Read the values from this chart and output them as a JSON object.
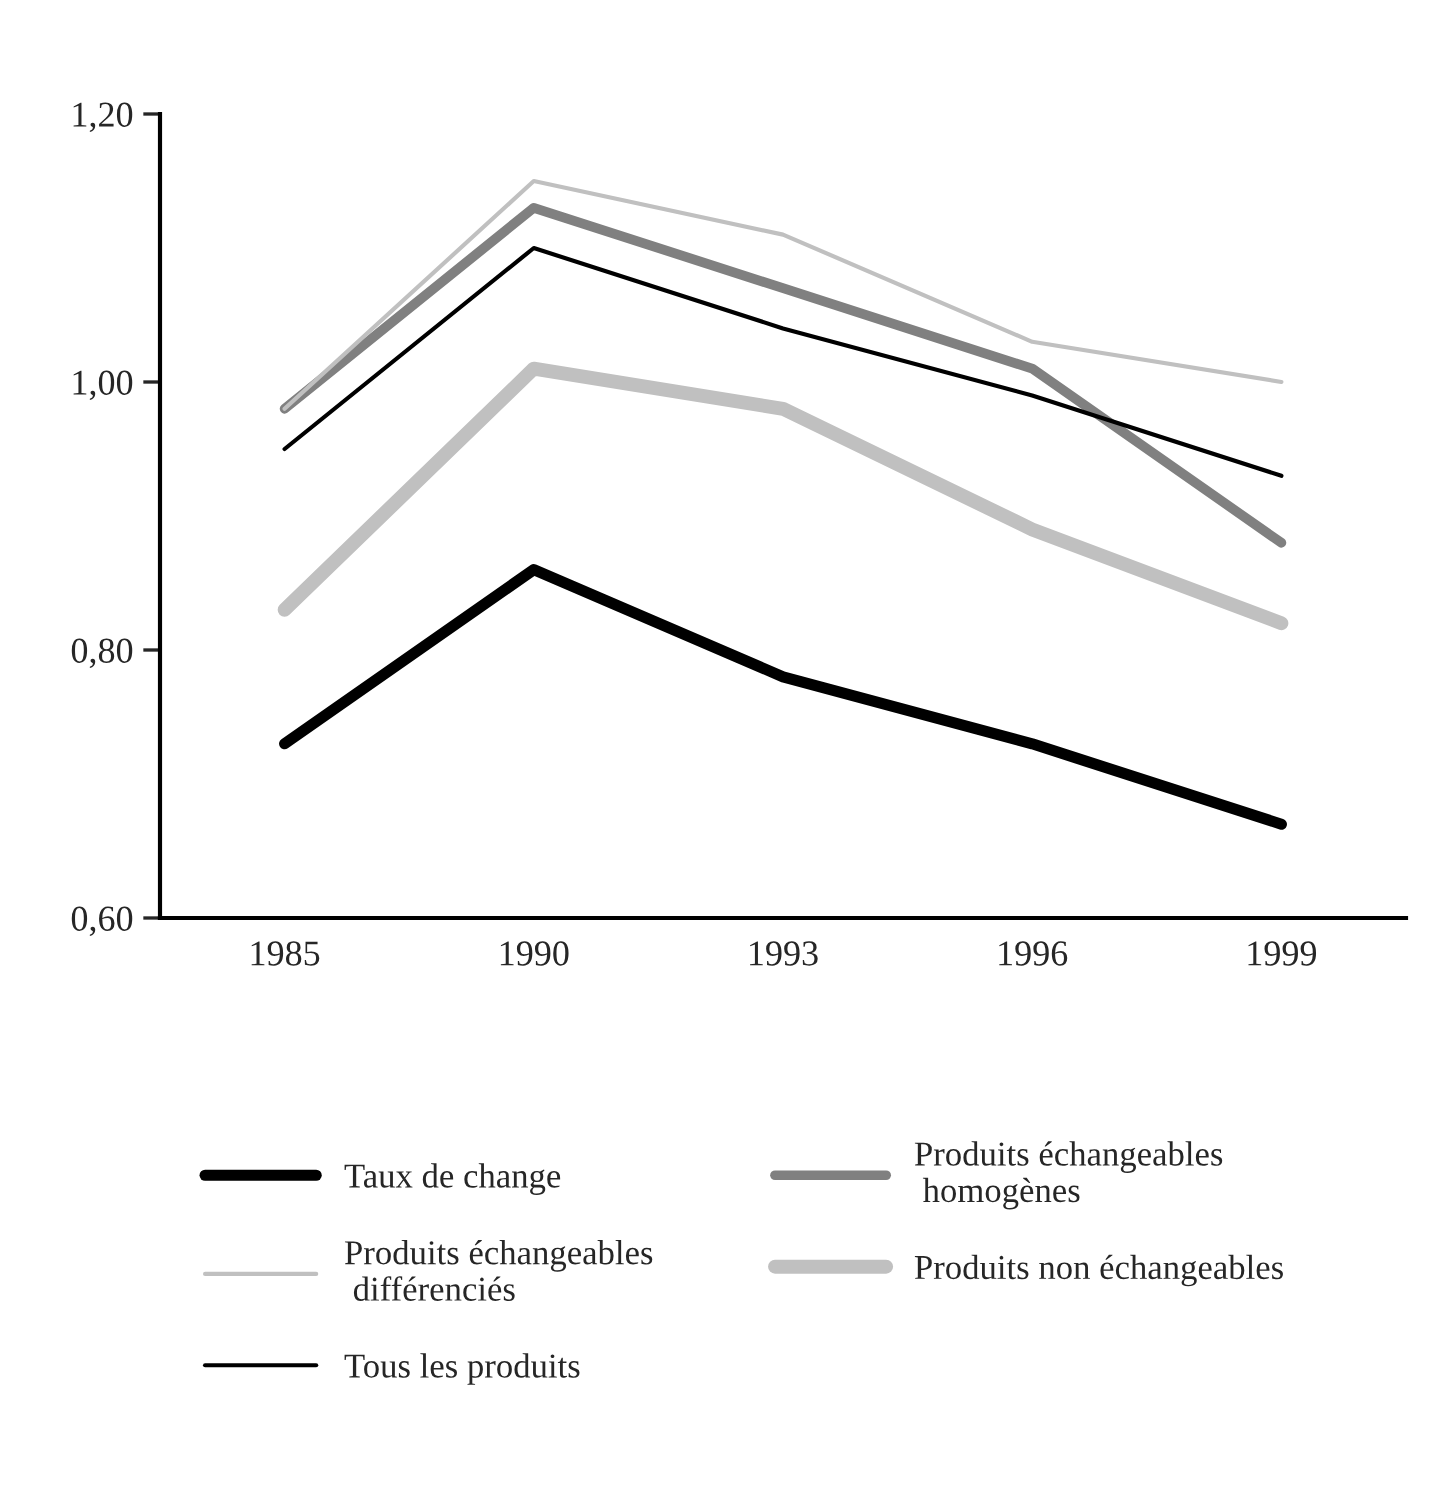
{
  "chart_data": {
    "type": "line",
    "categories": [
      "1985",
      "1990",
      "1993",
      "1996",
      "1999"
    ],
    "series": [
      {
        "name": "Taux de change",
        "color": "#000000",
        "values": [
          0.73,
          0.86,
          0.78,
          0.73,
          0.67
        ]
      },
      {
        "name": "Produits échangeables\n homogènes",
        "color": "#808080",
        "values": [
          0.98,
          1.13,
          1.07,
          1.01,
          0.88
        ]
      },
      {
        "name": "Produits échangeables\n différenciés",
        "color": "#c0c0c0",
        "values": [
          0.98,
          1.15,
          1.11,
          1.03,
          1.0
        ]
      },
      {
        "name": "Produits non échangeables",
        "color": "#c0c0c0",
        "values": [
          0.83,
          1.01,
          0.98,
          0.89,
          0.82
        ]
      },
      {
        "name": "Tous les produits",
        "color": "#000000",
        "values": [
          0.95,
          1.1,
          1.04,
          0.99,
          0.93
        ]
      }
    ],
    "ylim": [
      0.6,
      1.2
    ],
    "yticks": [
      {
        "value": 0.6,
        "label": "0,60"
      },
      {
        "value": 0.8,
        "label": "0,80"
      },
      {
        "value": 1.0,
        "label": "1,00"
      },
      {
        "value": 1.2,
        "label": "1,20"
      }
    ],
    "grid": false,
    "legend": "bottom",
    "marker": "none",
    "line_style": "solid"
  }
}
